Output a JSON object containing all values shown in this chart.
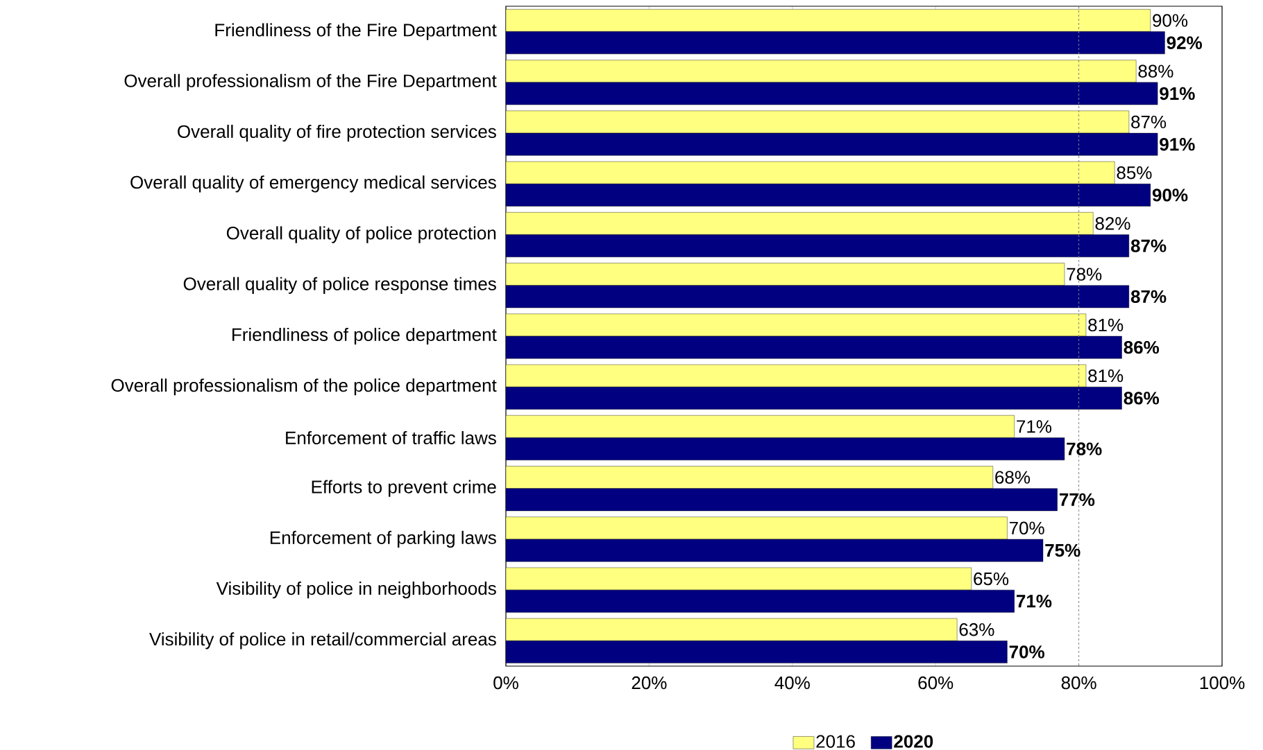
{
  "chart_data": {
    "type": "bar",
    "orientation": "horizontal",
    "categories": [
      "Friendliness of the Fire Department",
      "Overall professionalism of the Fire Department",
      "Overall quality of fire protection services",
      "Overall quality of emergency medical services",
      "Overall quality of police protection",
      "Overall quality of police response times",
      "Friendliness of police department",
      "Overall professionalism of the police department",
      "Enforcement of traffic laws",
      "Efforts to prevent crime",
      "Enforcement of parking laws",
      "Visibility of police in neighborhoods",
      "Visibility of police in retail/commercial areas"
    ],
    "series": [
      {
        "name": "2016",
        "color": "#ffff80",
        "values": [
          90,
          88,
          87,
          85,
          82,
          78,
          81,
          81,
          71,
          68,
          70,
          65,
          63
        ],
        "value_labels": [
          "90%",
          "88%",
          "87%",
          "85%",
          "82%",
          "78%",
          "81%",
          "81%",
          "71%",
          "68%",
          "70%",
          "65%",
          "63%"
        ]
      },
      {
        "name": "**2020**",
        "color": "#000080",
        "values": [
          92,
          91,
          91,
          90,
          87,
          87,
          86,
          86,
          78,
          77,
          75,
          71,
          70
        ],
        "value_labels": [
          "92%",
          "91%",
          "91%",
          "90%",
          "87%",
          "87%",
          "86%",
          "86%",
          "78%",
          "77%",
          "75%",
          "71%",
          "70%"
        ]
      }
    ],
    "xlim": [
      0,
      100
    ],
    "xticks": [
      {
        "value": 0,
        "label": "0%"
      },
      {
        "value": 20,
        "label": "20%"
      },
      {
        "value": 40,
        "label": "40%"
      },
      {
        "value": 60,
        "label": "60%"
      },
      {
        "value": 80,
        "label": "80%"
      },
      {
        "value": 100,
        "label": "100%"
      }
    ],
    "ref_lines": [
      {
        "axis": "x",
        "value": 80,
        "color": "#808080",
        "line_style": "dashed"
      }
    ],
    "legend": "bottom",
    "grid": false
  }
}
